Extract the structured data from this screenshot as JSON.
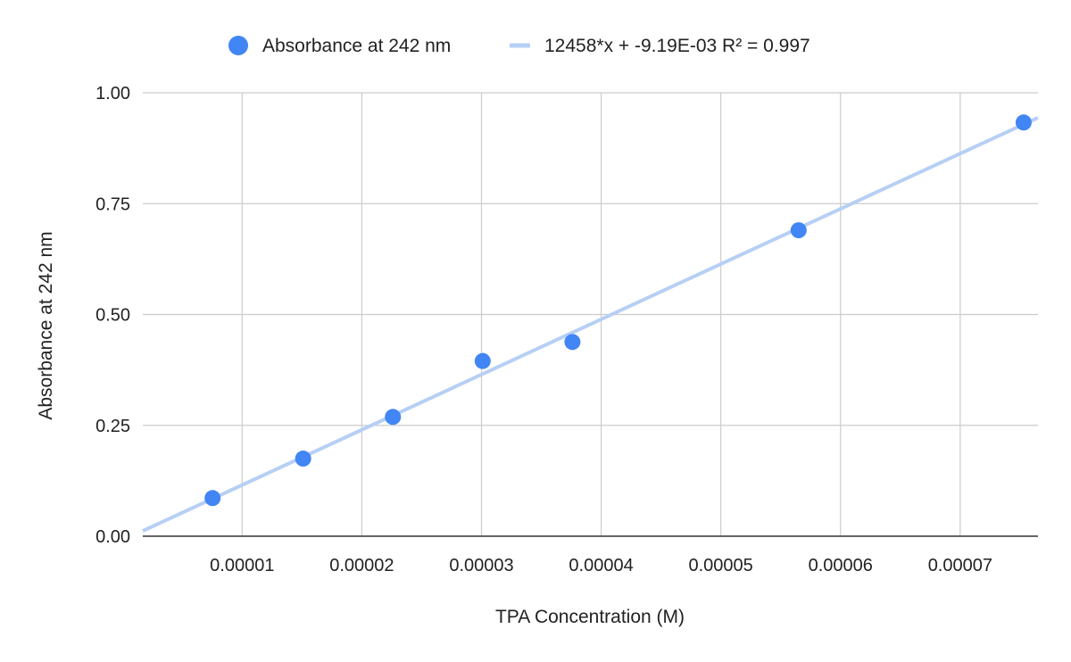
{
  "chart_data": {
    "type": "scatter",
    "xlabel": "TPA Concentration (M)",
    "ylabel": "Absorbance at 242 nm",
    "xlim": [
      1.7e-06,
      7.65e-05
    ],
    "ylim": [
      0,
      1
    ],
    "x_ticks": [
      "0.00001",
      "0.00002",
      "0.00003",
      "0.00004",
      "0.00005",
      "0.00006",
      "0.00007"
    ],
    "x_tick_values": [
      1e-05,
      2e-05,
      3e-05,
      4e-05,
      5e-05,
      6e-05,
      7e-05
    ],
    "y_ticks": [
      "0.00",
      "0.25",
      "0.50",
      "0.75",
      "1.00"
    ],
    "y_tick_values": [
      0,
      0.25,
      0.5,
      0.75,
      1.0
    ],
    "grid": true,
    "legend_position": "top",
    "series": [
      {
        "name": "Absorbance at 242 nm",
        "color": "#4285f4",
        "x": [
          7.53e-06,
          1.51e-05,
          2.26e-05,
          3.01e-05,
          3.76e-05,
          5.65e-05,
          7.53e-05
        ],
        "y": [
          0.086,
          0.175,
          0.269,
          0.395,
          0.438,
          0.69,
          0.933
        ]
      }
    ],
    "trendline": {
      "label": "12458*x + -9.19E-03 R² = 0.997",
      "slope": 12458,
      "intercept": -0.00919,
      "color": "#b7cff5"
    }
  }
}
